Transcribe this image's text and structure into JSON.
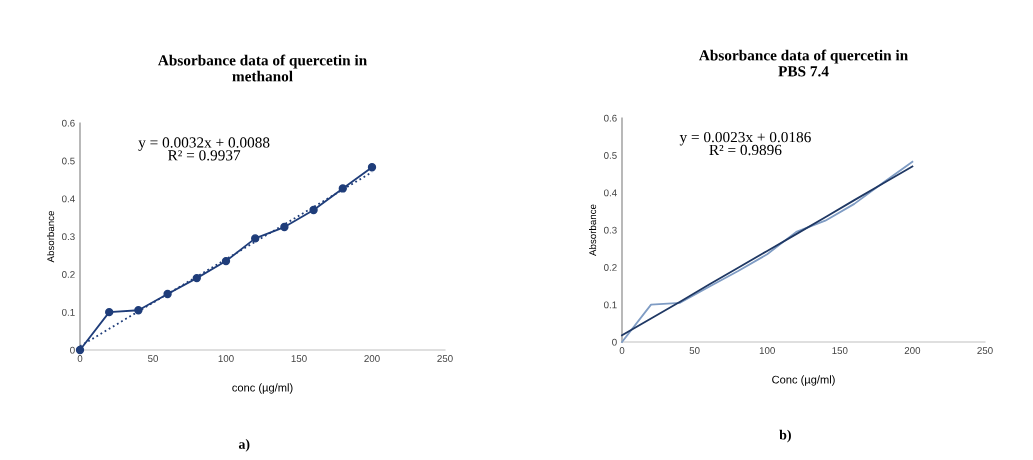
{
  "chart_data": [
    {
      "type": "line",
      "title": "Absorbance data of quercetin in\nmethanol",
      "xlabel": "conc (µg/ml)",
      "ylabel": "Absorbance",
      "marker": "circle",
      "grid": false,
      "legend": false,
      "x": [
        0,
        20,
        40,
        60,
        80,
        100,
        120,
        140,
        160,
        180,
        200
      ],
      "series": [
        {
          "color": "#1f3d7a",
          "values": [
            0,
            0.1,
            0.105,
            0.148,
            0.19,
            0.235,
            0.295,
            0.325,
            0.37,
            0.427,
            0.483
          ]
        },
        {
          "type": "line",
          "values": [
            0.01,
            0.056,
            0.102,
            0.148,
            0.194,
            0.24,
            0.286,
            0.332,
            0.378,
            0.424,
            0.47
          ],
          "color": "#1f3d7a",
          "line_style": "dotted",
          "marker": "none"
        }
      ],
      "xlim": [
        0,
        250
      ],
      "xticks": [
        0,
        50,
        100,
        150,
        200,
        250
      ],
      "ylim": [
        0,
        0.6
      ],
      "yticks": [
        0,
        0.1,
        0.2,
        0.3,
        0.4,
        0.5,
        0.6
      ],
      "annotations": [
        "y = 0.0032x + 0.0088\nR² = 0.9937",
        "a)"
      ]
    },
    {
      "type": "line",
      "title": "Absorbance data of quercetin in\nPBS 7.4",
      "xlabel": "Conc (µg/ml)",
      "ylabel": "Absorbance",
      "marker": "none",
      "grid": false,
      "legend": false,
      "x": [
        0,
        20,
        40,
        60,
        80,
        100,
        120,
        140,
        160,
        180,
        200
      ],
      "series": [
        {
          "color": "#7f9cc4",
          "values": [
            0,
            0.1,
            0.105,
            0.148,
            0.19,
            0.235,
            0.295,
            0.325,
            0.37,
            0.427,
            0.483
          ]
        },
        {
          "type": "line",
          "values": [
            0.018,
            0.063,
            0.108,
            0.154,
            0.199,
            0.244,
            0.289,
            0.334,
            0.38,
            0.425,
            0.47
          ],
          "color": "#1f3864",
          "line_style": "solid"
        }
      ],
      "xlim": [
        0,
        250
      ],
      "xticks": [
        0,
        50,
        100,
        150,
        200,
        250
      ],
      "ylim": [
        0,
        0.6
      ],
      "yticks": [
        0,
        0.1,
        0.2,
        0.3,
        0.4,
        0.5,
        0.6
      ],
      "annotations": [
        "y = 0.0023x + 0.0186\nR² = 0.9896",
        "b)"
      ]
    }
  ]
}
